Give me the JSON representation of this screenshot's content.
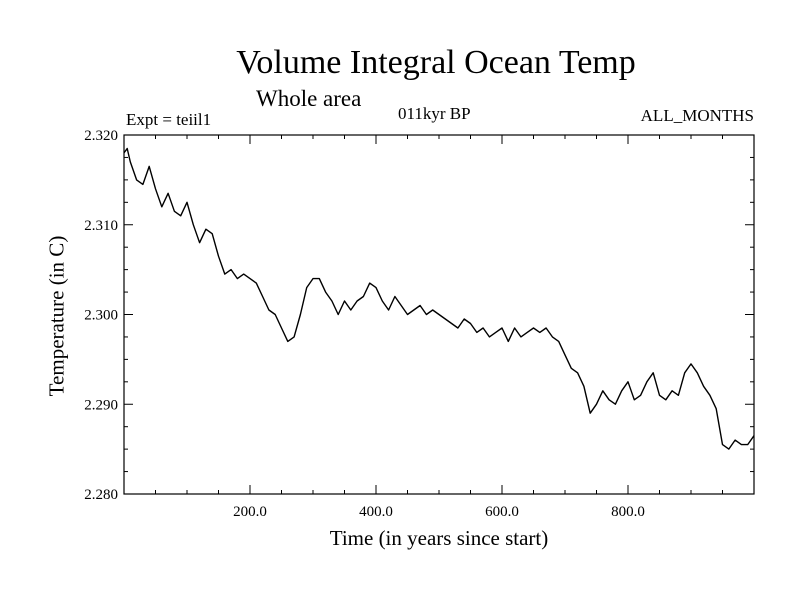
{
  "header": {
    "title": "Volume Integral Ocean Temp",
    "subtitle": "Whole area",
    "expt": "Expt = teiil1",
    "period": "011kyr BP",
    "months": "ALL_MONTHS"
  },
  "chart_data": {
    "type": "line",
    "title": "Volume Integral Ocean Temp",
    "subtitle": "Whole area",
    "xlabel": "Time (in years since start)",
    "ylabel": "Temperature (in C)",
    "xlim": [
      0,
      1000
    ],
    "ylim": [
      2.28,
      2.32
    ],
    "x_ticks": [
      200,
      400,
      600,
      800
    ],
    "x_tick_labels": [
      "200.0",
      "400.0",
      "600.0",
      "800.0"
    ],
    "y_ticks": [
      2.28,
      2.29,
      2.3,
      2.31,
      2.32
    ],
    "y_tick_labels": [
      "2.280",
      "2.290",
      "2.300",
      "2.310",
      "2.320"
    ],
    "grid": false,
    "line_color": "#000000",
    "series": [
      {
        "x": [
          0,
          5,
          10,
          20,
          30,
          40,
          50,
          60,
          70,
          80,
          90,
          100,
          110,
          120,
          130,
          140,
          150,
          160,
          170,
          180,
          190,
          200,
          210,
          220,
          230,
          240,
          250,
          260,
          270,
          280,
          290,
          300,
          310,
          320,
          330,
          340,
          350,
          360,
          370,
          380,
          390,
          400,
          410,
          420,
          430,
          440,
          450,
          460,
          470,
          480,
          490,
          500,
          510,
          520,
          530,
          540,
          550,
          560,
          570,
          580,
          590,
          600,
          610,
          620,
          630,
          640,
          650,
          660,
          670,
          680,
          690,
          700,
          710,
          720,
          730,
          740,
          750,
          760,
          770,
          780,
          790,
          800,
          810,
          820,
          830,
          840,
          850,
          860,
          870,
          880,
          890,
          900,
          910,
          920,
          930,
          940,
          950,
          960,
          970,
          980,
          990,
          1000
        ],
        "values": [
          2.318,
          2.3185,
          2.317,
          2.315,
          2.3145,
          2.3165,
          2.314,
          2.312,
          2.3135,
          2.3115,
          2.311,
          2.3125,
          2.31,
          2.308,
          2.3095,
          2.309,
          2.3065,
          2.3045,
          2.305,
          2.304,
          2.3045,
          2.304,
          2.3035,
          2.302,
          2.3005,
          2.3,
          2.2985,
          2.297,
          2.2975,
          2.3,
          2.303,
          2.304,
          2.304,
          2.3025,
          2.3015,
          2.3,
          2.3015,
          2.3005,
          2.3015,
          2.302,
          2.3035,
          2.303,
          2.3015,
          2.3005,
          2.302,
          2.301,
          2.3,
          2.3005,
          2.301,
          2.3,
          2.3005,
          2.3,
          2.2995,
          2.299,
          2.2985,
          2.2995,
          2.299,
          2.298,
          2.2985,
          2.2975,
          2.298,
          2.2985,
          2.297,
          2.2985,
          2.2975,
          2.298,
          2.2985,
          2.298,
          2.2985,
          2.2975,
          2.297,
          2.2955,
          2.294,
          2.2935,
          2.292,
          2.289,
          2.29,
          2.2915,
          2.2905,
          2.29,
          2.2915,
          2.2925,
          2.2905,
          2.291,
          2.2925,
          2.2935,
          2.291,
          2.2905,
          2.2915,
          2.291,
          2.2935,
          2.2945,
          2.2935,
          2.292,
          2.291,
          2.2895,
          2.2855,
          2.285,
          2.286,
          2.2855,
          2.2855,
          2.2865
        ]
      }
    ]
  }
}
